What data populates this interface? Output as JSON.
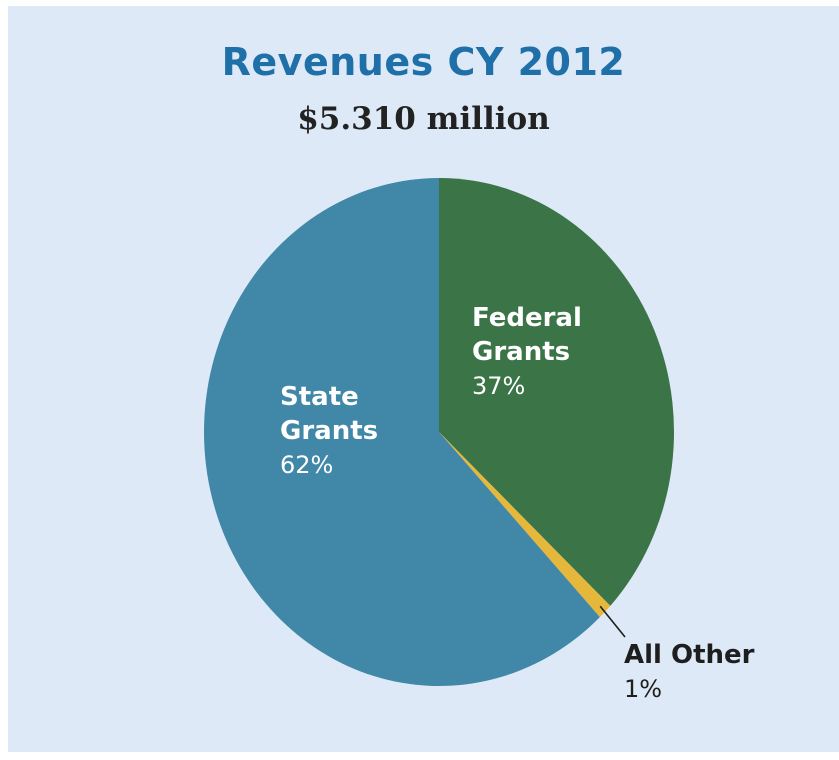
{
  "chart_data": {
    "type": "pie",
    "title": "Revenues CY 2012",
    "subtitle": "$5.310 million",
    "slices": [
      {
        "label": "Federal Grants",
        "label_lines": [
          "Federal",
          "Grants"
        ],
        "value": 37,
        "display": "37%",
        "color": "#3a7447"
      },
      {
        "label": "All Other",
        "label_lines": [
          "All Other"
        ],
        "value": 1,
        "display": "1%",
        "color": "#e5b73b"
      },
      {
        "label": "State Grants",
        "label_lines": [
          "State",
          "Grants"
        ],
        "value": 62,
        "display": "62%",
        "color": "#4187a8"
      }
    ],
    "start": "12 o'clock",
    "direction": "clockwise",
    "legend": "none"
  },
  "colors": {
    "background": "#dde9f6",
    "title": "#1f6fa8",
    "subtitle": "#222222"
  }
}
